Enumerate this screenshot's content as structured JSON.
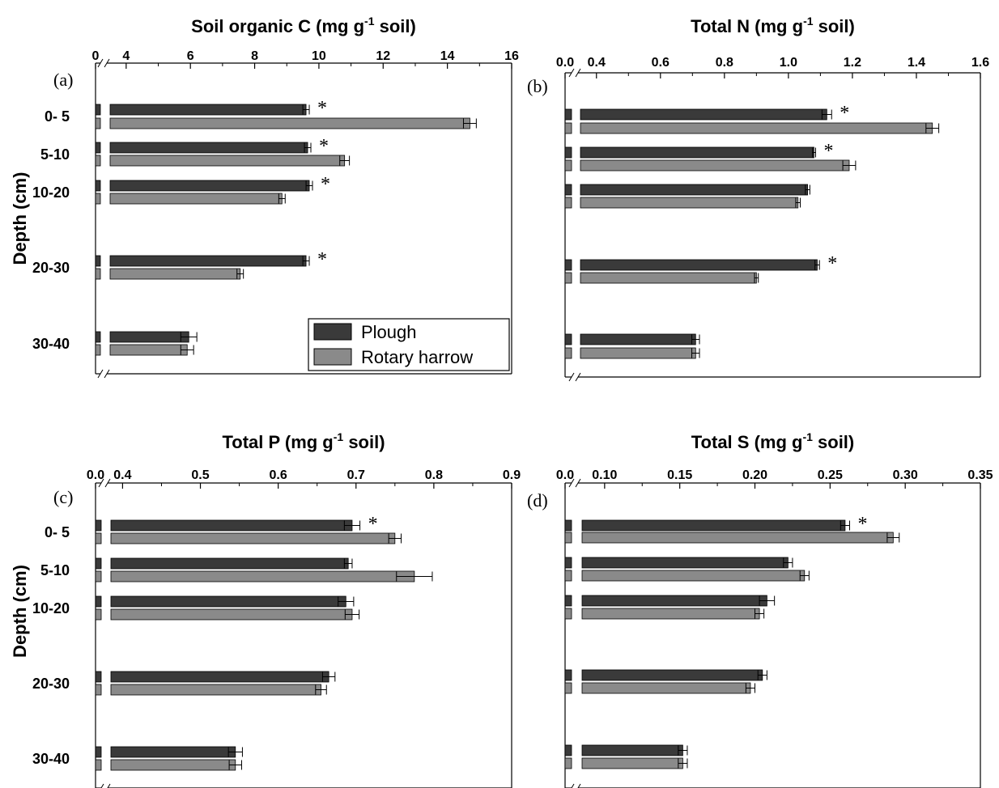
{
  "colors": {
    "plough": "#3a3a3a",
    "rotary": "#8a8a8a"
  },
  "legend": {
    "plough": "Plough",
    "rotary": "Rotary harrow"
  },
  "ylabel": "Depth (cm)",
  "chart_data": [
    {
      "type": "bar",
      "panel": "(a)",
      "title": "Soil organic C (mg g-1 soil)",
      "title_parts": {
        "main": "Soil organic C (mg g",
        "sup": "-1",
        "tail": " soil)"
      },
      "xlim": [
        3.5,
        16
      ],
      "break_at": 0,
      "xticks": [
        {
          "v": 4,
          "label": "4"
        },
        {
          "v": 6,
          "label": "6"
        },
        {
          "v": 8,
          "label": "8"
        },
        {
          "v": 10,
          "label": "10"
        },
        {
          "v": 12,
          "label": "12"
        },
        {
          "v": 14,
          "label": "14"
        },
        {
          "v": 16,
          "label": "16"
        }
      ],
      "zero_label": "0",
      "minor_step": 1,
      "categories": [
        "0- 5",
        "5-10",
        "10-20",
        "20-30",
        "30-40"
      ],
      "series": [
        {
          "name": "Plough",
          "values": [
            9.6,
            9.65,
            9.7,
            9.6,
            5.95
          ],
          "errors": [
            0.1,
            0.1,
            0.1,
            0.1,
            0.25
          ]
        },
        {
          "name": "Rotary harrow",
          "values": [
            14.7,
            10.8,
            8.85,
            7.55,
            5.9
          ],
          "errors": [
            0.2,
            0.15,
            0.1,
            0.1,
            0.2
          ]
        }
      ],
      "significant": [
        "*",
        "*",
        "*",
        "*",
        ""
      ],
      "legend": true,
      "show_ylabel": true
    },
    {
      "type": "bar",
      "panel": "(b)",
      "title": "Total N (mg g-1 soil)",
      "title_parts": {
        "main": "Total N (mg g",
        "sup": "-1",
        "tail": " soil)"
      },
      "xlim": [
        0.35,
        1.6
      ],
      "break_at": 0,
      "xticks": [
        {
          "v": 0.4,
          "label": "0.4"
        },
        {
          "v": 0.6,
          "label": "0.6"
        },
        {
          "v": 0.8,
          "label": "0.8"
        },
        {
          "v": 1.0,
          "label": "1.0"
        },
        {
          "v": 1.2,
          "label": "1.2"
        },
        {
          "v": 1.4,
          "label": "1.4"
        },
        {
          "v": 1.6,
          "label": "1.6"
        }
      ],
      "zero_label": "0.0",
      "minor_step": 0.1,
      "categories": [
        "0- 5",
        "5-10",
        "10-20",
        "20-30",
        "30-40"
      ],
      "series": [
        {
          "name": "Plough",
          "values": [
            1.12,
            1.08,
            1.06,
            1.09,
            0.71
          ],
          "errors": [
            0.015,
            0.005,
            0.007,
            0.007,
            0.012
          ]
        },
        {
          "name": "Rotary harrow",
          "values": [
            1.45,
            1.19,
            1.03,
            0.9,
            0.71
          ],
          "errors": [
            0.02,
            0.02,
            0.007,
            0.006,
            0.012
          ]
        }
      ],
      "significant": [
        "*",
        "*",
        "",
        "*",
        ""
      ],
      "legend": false,
      "show_ylabel": false
    },
    {
      "type": "bar",
      "panel": "(c)",
      "title": "Total P (mg g-1 soil)",
      "title_parts": {
        "main": "Total P (mg g",
        "sup": "-1",
        "tail": " soil)"
      },
      "xlim": [
        0.385,
        0.9
      ],
      "break_at": 0,
      "xticks": [
        {
          "v": 0.4,
          "label": "0.4"
        },
        {
          "v": 0.5,
          "label": "0.5"
        },
        {
          "v": 0.6,
          "label": "0.6"
        },
        {
          "v": 0.7,
          "label": "0.7"
        },
        {
          "v": 0.8,
          "label": "0.8"
        },
        {
          "v": 0.9,
          "label": "0.9"
        }
      ],
      "zero_label": "0.0",
      "minor_step": 0.05,
      "categories": [
        "0- 5",
        "5-10",
        "10-20",
        "20-30",
        "30-40"
      ],
      "series": [
        {
          "name": "Plough",
          "values": [
            0.695,
            0.69,
            0.687,
            0.665,
            0.545
          ],
          "errors": [
            0.01,
            0.005,
            0.01,
            0.008,
            0.009
          ]
        },
        {
          "name": "Rotary harrow",
          "values": [
            0.75,
            0.775,
            0.695,
            0.655,
            0.545
          ],
          "errors": [
            0.008,
            0.023,
            0.009,
            0.007,
            0.008
          ]
        }
      ],
      "significant": [
        "*",
        "",
        "",
        "",
        ""
      ],
      "legend": false,
      "show_ylabel": true
    },
    {
      "type": "bar",
      "panel": "(d)",
      "title": "Total S (mg g-1 soil)",
      "title_parts": {
        "main": "Total S (mg g",
        "sup": "-1",
        "tail": " soil)"
      },
      "xlim": [
        0.085,
        0.35
      ],
      "break_at": 0,
      "xticks": [
        {
          "v": 0.1,
          "label": "0.10"
        },
        {
          "v": 0.15,
          "label": "0.15"
        },
        {
          "v": 0.2,
          "label": "0.20"
        },
        {
          "v": 0.25,
          "label": "0.25"
        },
        {
          "v": 0.3,
          "label": "0.30"
        },
        {
          "v": 0.35,
          "label": "0.35"
        }
      ],
      "zero_label": "0.0",
      "minor_step": 0.025,
      "categories": [
        "0- 5",
        "5-10",
        "10-20",
        "20-30",
        "30-40"
      ],
      "series": [
        {
          "name": "Plough",
          "values": [
            0.26,
            0.222,
            0.208,
            0.205,
            0.152
          ],
          "errors": [
            0.003,
            0.003,
            0.005,
            0.003,
            0.003
          ]
        },
        {
          "name": "Rotary harrow",
          "values": [
            0.292,
            0.233,
            0.203,
            0.197,
            0.152
          ],
          "errors": [
            0.004,
            0.003,
            0.003,
            0.003,
            0.003
          ]
        }
      ],
      "significant": [
        "*",
        "",
        "",
        "",
        ""
      ],
      "legend": false,
      "show_ylabel": false
    }
  ]
}
